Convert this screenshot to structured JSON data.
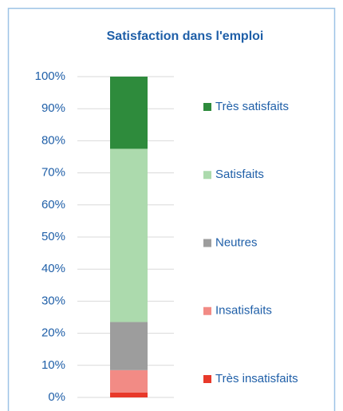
{
  "chart_data": {
    "type": "stacked_bar",
    "title": "Satisfaction dans l'emploi",
    "categories": [
      null
    ],
    "series": [
      {
        "name": "Très insatisfaits",
        "color": "#e8392a",
        "values": [
          1.5
        ]
      },
      {
        "name": "Insatisfaits",
        "color": "#f28b85",
        "values": [
          7
        ]
      },
      {
        "name": "Neutres",
        "color": "#9d9d9d",
        "values": [
          15
        ]
      },
      {
        "name": "Satisfaits",
        "color": "#acdaad",
        "values": [
          54
        ]
      },
      {
        "name": "Très satisfaits",
        "color": "#2e8b3c",
        "values": [
          22.5
        ]
      }
    ],
    "ylim": [
      0,
      100
    ],
    "yticks": [
      {
        "value": 0,
        "label": "0%"
      },
      {
        "value": 10,
        "label": "10%"
      },
      {
        "value": 20,
        "label": "20%"
      },
      {
        "value": 30,
        "label": "30%"
      },
      {
        "value": 40,
        "label": "40%"
      },
      {
        "value": 50,
        "label": "50%"
      },
      {
        "value": 60,
        "label": "60%"
      },
      {
        "value": 70,
        "label": "70%"
      },
      {
        "value": 80,
        "label": "80%"
      },
      {
        "value": 90,
        "label": "90%"
      },
      {
        "value": 100,
        "label": "100%"
      }
    ],
    "grid": true,
    "legend": "right"
  }
}
